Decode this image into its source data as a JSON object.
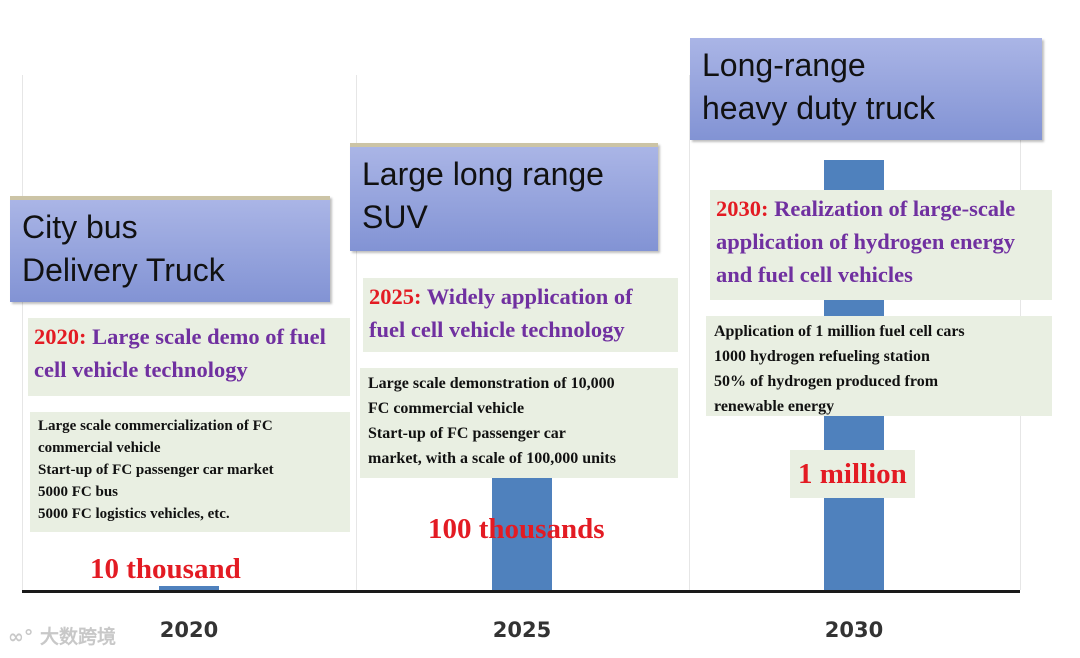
{
  "chart_data": {
    "type": "bar",
    "categories": [
      "2020",
      "2025",
      "2030"
    ],
    "values": [
      10000,
      100000,
      1000000
    ],
    "value_labels": [
      "10 thousand",
      "100 thousands",
      "1 million"
    ],
    "title": "",
    "xlabel": "",
    "ylabel": "",
    "grid": "vertical"
  },
  "stages": [
    {
      "vehicle": [
        "City bus",
        "Delivery Truck"
      ],
      "goal_year": "2020:",
      "goal_text": "Large scale demo of fuel cell vehicle technology",
      "details": [
        "Large scale commercialization of FC",
        "commercial vehicle",
        "Start-up of FC passenger car market",
        "5000 FC bus",
        "5000 FC logistics vehicles, etc."
      ]
    },
    {
      "vehicle": [
        "Large long range",
        "SUV"
      ],
      "goal_year": "2025:",
      "goal_text": "Widely application of fuel cell vehicle technology",
      "details": [
        "Large scale demonstration of 10,000",
        "FC commercial vehicle",
        "Start-up of FC passenger car",
        "market, with a scale of 100,000 units"
      ]
    },
    {
      "vehicle": [
        "Long-range",
        "heavy duty truck"
      ],
      "goal_year": "2030:",
      "goal_text": "Realization of large-scale application of hydrogen energy and fuel cell vehicles",
      "details": [
        "Application of 1 million fuel cell cars",
        "1000 hydrogen refueling station",
        "50% of hydrogen produced from",
        "renewable energy"
      ]
    }
  ],
  "watermark": "大数跨境",
  "colors": {
    "bar": "#4f81bd",
    "year": "#e31b23",
    "goal": "#7030a0",
    "panel": "#e9efe2"
  }
}
